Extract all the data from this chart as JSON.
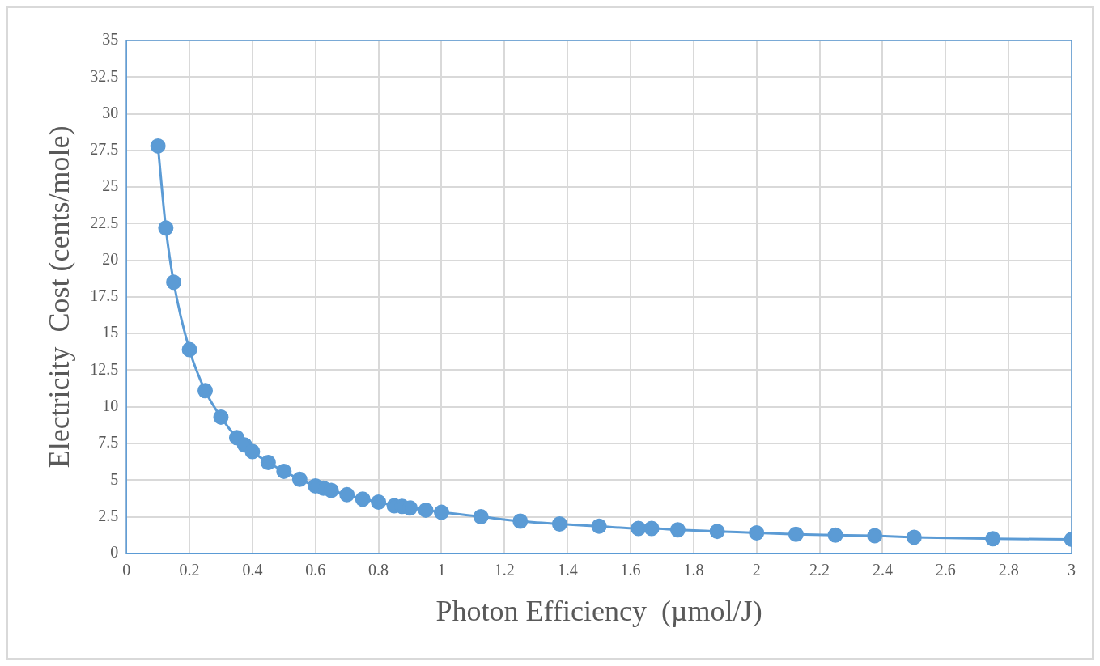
{
  "chart_data": {
    "type": "line",
    "xlabel": "Photon Efficiency  (µmol/J)",
    "ylabel": "Electricity  Cost (cents/mole)",
    "x": [
      0.1,
      0.125,
      0.15,
      0.2,
      0.25,
      0.3,
      0.35,
      0.375,
      0.4,
      0.45,
      0.5,
      0.55,
      0.6,
      0.625,
      0.65,
      0.7,
      0.75,
      0.8,
      0.85,
      0.875,
      0.9,
      0.95,
      1,
      1.125,
      1.25,
      1.375,
      1.5,
      1.625,
      1.667,
      1.75,
      1.875,
      2,
      2.125,
      2.25,
      2.375,
      2.5,
      2.75,
      3
    ],
    "series": [
      {
        "color": "#5b9bd5",
        "values": [
          27.8,
          22.2,
          18.5,
          13.9,
          11.1,
          9.3,
          7.9,
          7.4,
          6.95,
          6.2,
          5.6,
          5.05,
          4.6,
          4.45,
          4.3,
          4.0,
          3.7,
          3.5,
          3.25,
          3.2,
          3.1,
          2.95,
          2.8,
          2.5,
          2.2,
          2.0,
          1.85,
          1.7,
          1.7,
          1.6,
          1.5,
          1.4,
          1.3,
          1.25,
          1.2,
          1.1,
          1.0,
          0.95
        ]
      }
    ],
    "xlim": [
      0,
      3
    ],
    "xticks": [
      0,
      0.2,
      0.4,
      0.6,
      0.8,
      1,
      1.2,
      1.4,
      1.6,
      1.8,
      2,
      2.2,
      2.4,
      2.6,
      2.8,
      3
    ],
    "ylim": [
      0,
      35
    ],
    "yticks": [
      0,
      2.5,
      5,
      7.5,
      10,
      12.5,
      15,
      17.5,
      20,
      22.5,
      25,
      27.5,
      30,
      32.5,
      35
    ],
    "grid": true,
    "legend": false,
    "marker": "circle",
    "line_style": "solid"
  }
}
